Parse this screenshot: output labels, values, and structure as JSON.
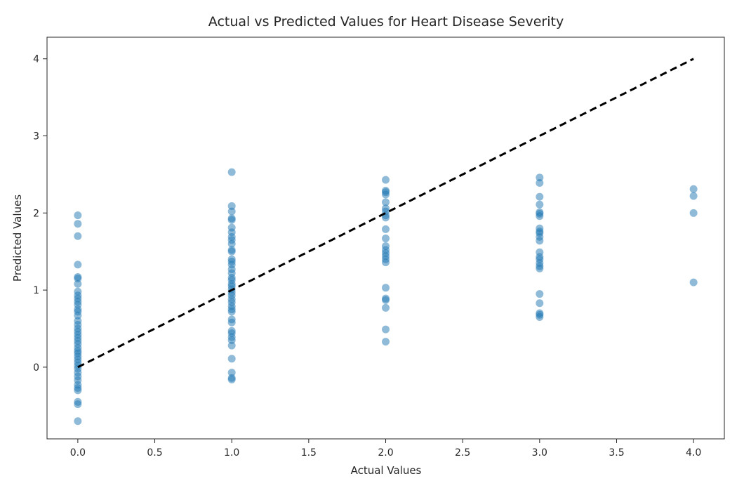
{
  "chart_data": {
    "type": "scatter",
    "title": "Actual vs Predicted Values for Heart Disease Severity",
    "xlabel": "Actual Values",
    "ylabel": "Predicted Values",
    "xlim": [
      -0.2,
      4.2
    ],
    "ylim": [
      -0.93,
      4.28
    ],
    "xticks": [
      "0.0",
      "0.5",
      "1.0",
      "1.5",
      "2.0",
      "2.5",
      "3.0",
      "3.5",
      "4.0"
    ],
    "xtick_values": [
      0,
      0.5,
      1,
      1.5,
      2,
      2.5,
      3,
      3.5,
      4
    ],
    "yticks": [
      "0",
      "1",
      "2",
      "3",
      "4"
    ],
    "ytick_values": [
      0,
      1,
      2,
      3,
      4
    ],
    "grid": false,
    "legend": "none",
    "point_color": "#1f77b4",
    "point_alpha": 0.5,
    "reference_line": {
      "style": "dashed",
      "color": "#000000",
      "from": [
        0,
        0
      ],
      "to": [
        4,
        4
      ]
    },
    "points": [
      {
        "x": 0,
        "y": 1.97
      },
      {
        "x": 0,
        "y": 1.86
      },
      {
        "x": 0,
        "y": 1.7
      },
      {
        "x": 0,
        "y": 1.33
      },
      {
        "x": 0,
        "y": 1.17
      },
      {
        "x": 0,
        "y": 1.15
      },
      {
        "x": 0,
        "y": 1.08
      },
      {
        "x": 0,
        "y": 0.98
      },
      {
        "x": 0,
        "y": 0.93
      },
      {
        "x": 0,
        "y": 0.89
      },
      {
        "x": 0,
        "y": 0.85
      },
      {
        "x": 0,
        "y": 0.81
      },
      {
        "x": 0,
        "y": 0.75
      },
      {
        "x": 0,
        "y": 0.72
      },
      {
        "x": 0,
        "y": 0.67
      },
      {
        "x": 0,
        "y": 0.6
      },
      {
        "x": 0,
        "y": 0.55
      },
      {
        "x": 0,
        "y": 0.5
      },
      {
        "x": 0,
        "y": 0.46
      },
      {
        "x": 0,
        "y": 0.42
      },
      {
        "x": 0,
        "y": 0.38
      },
      {
        "x": 0,
        "y": 0.34
      },
      {
        "x": 0,
        "y": 0.3
      },
      {
        "x": 0,
        "y": 0.25
      },
      {
        "x": 0,
        "y": 0.21
      },
      {
        "x": 0,
        "y": 0.18
      },
      {
        "x": 0,
        "y": 0.14
      },
      {
        "x": 0,
        "y": 0.1
      },
      {
        "x": 0,
        "y": 0.06
      },
      {
        "x": 0,
        "y": 0.02
      },
      {
        "x": 0,
        "y": -0.02
      },
      {
        "x": 0,
        "y": -0.07
      },
      {
        "x": 0,
        "y": -0.12
      },
      {
        "x": 0,
        "y": -0.17
      },
      {
        "x": 0,
        "y": -0.23
      },
      {
        "x": 0,
        "y": -0.27
      },
      {
        "x": 0,
        "y": -0.3
      },
      {
        "x": 0,
        "y": -0.45
      },
      {
        "x": 0,
        "y": -0.48
      },
      {
        "x": 0,
        "y": -0.7
      },
      {
        "x": 1,
        "y": 2.53
      },
      {
        "x": 1,
        "y": 2.09
      },
      {
        "x": 1,
        "y": 2.02
      },
      {
        "x": 1,
        "y": 1.93
      },
      {
        "x": 1,
        "y": 1.91
      },
      {
        "x": 1,
        "y": 1.81
      },
      {
        "x": 1,
        "y": 1.75
      },
      {
        "x": 1,
        "y": 1.69
      },
      {
        "x": 1,
        "y": 1.65
      },
      {
        "x": 1,
        "y": 1.6
      },
      {
        "x": 1,
        "y": 1.52
      },
      {
        "x": 1,
        "y": 1.5
      },
      {
        "x": 1,
        "y": 1.4
      },
      {
        "x": 1,
        "y": 1.37
      },
      {
        "x": 1,
        "y": 1.33
      },
      {
        "x": 1,
        "y": 1.27
      },
      {
        "x": 1,
        "y": 1.22
      },
      {
        "x": 1,
        "y": 1.16
      },
      {
        "x": 1,
        "y": 1.13
      },
      {
        "x": 1,
        "y": 1.08
      },
      {
        "x": 1,
        "y": 1.05
      },
      {
        "x": 1,
        "y": 1.01
      },
      {
        "x": 1,
        "y": 0.97
      },
      {
        "x": 1,
        "y": 0.93
      },
      {
        "x": 1,
        "y": 0.88
      },
      {
        "x": 1,
        "y": 0.84
      },
      {
        "x": 1,
        "y": 0.79
      },
      {
        "x": 1,
        "y": 0.75
      },
      {
        "x": 1,
        "y": 0.72
      },
      {
        "x": 1,
        "y": 0.62
      },
      {
        "x": 1,
        "y": 0.58
      },
      {
        "x": 1,
        "y": 0.47
      },
      {
        "x": 1,
        "y": 0.44
      },
      {
        "x": 1,
        "y": 0.39
      },
      {
        "x": 1,
        "y": 0.35
      },
      {
        "x": 1,
        "y": 0.28
      },
      {
        "x": 1,
        "y": 0.11
      },
      {
        "x": 1,
        "y": -0.07
      },
      {
        "x": 1,
        "y": -0.14
      },
      {
        "x": 1,
        "y": -0.16
      },
      {
        "x": 2,
        "y": 2.43
      },
      {
        "x": 2,
        "y": 2.29
      },
      {
        "x": 2,
        "y": 2.27
      },
      {
        "x": 2,
        "y": 2.24
      },
      {
        "x": 2,
        "y": 2.14
      },
      {
        "x": 2,
        "y": 2.06
      },
      {
        "x": 2,
        "y": 2.02
      },
      {
        "x": 2,
        "y": 1.97
      },
      {
        "x": 2,
        "y": 1.94
      },
      {
        "x": 2,
        "y": 1.79
      },
      {
        "x": 2,
        "y": 1.67
      },
      {
        "x": 2,
        "y": 1.57
      },
      {
        "x": 2,
        "y": 1.52
      },
      {
        "x": 2,
        "y": 1.48
      },
      {
        "x": 2,
        "y": 1.44
      },
      {
        "x": 2,
        "y": 1.4
      },
      {
        "x": 2,
        "y": 1.36
      },
      {
        "x": 2,
        "y": 1.03
      },
      {
        "x": 2,
        "y": 0.89
      },
      {
        "x": 2,
        "y": 0.87
      },
      {
        "x": 2,
        "y": 0.77
      },
      {
        "x": 2,
        "y": 0.49
      },
      {
        "x": 2,
        "y": 0.33
      },
      {
        "x": 3,
        "y": 2.46
      },
      {
        "x": 3,
        "y": 2.39
      },
      {
        "x": 3,
        "y": 2.21
      },
      {
        "x": 3,
        "y": 2.11
      },
      {
        "x": 3,
        "y": 2.01
      },
      {
        "x": 3,
        "y": 1.99
      },
      {
        "x": 3,
        "y": 1.96
      },
      {
        "x": 3,
        "y": 1.8
      },
      {
        "x": 3,
        "y": 1.76
      },
      {
        "x": 3,
        "y": 1.74
      },
      {
        "x": 3,
        "y": 1.69
      },
      {
        "x": 3,
        "y": 1.64
      },
      {
        "x": 3,
        "y": 1.49
      },
      {
        "x": 3,
        "y": 1.43
      },
      {
        "x": 3,
        "y": 1.4
      },
      {
        "x": 3,
        "y": 1.35
      },
      {
        "x": 3,
        "y": 1.31
      },
      {
        "x": 3,
        "y": 1.28
      },
      {
        "x": 3,
        "y": 0.95
      },
      {
        "x": 3,
        "y": 0.83
      },
      {
        "x": 3,
        "y": 0.7
      },
      {
        "x": 3,
        "y": 0.68
      },
      {
        "x": 3,
        "y": 0.65
      },
      {
        "x": 4,
        "y": 2.31
      },
      {
        "x": 4,
        "y": 2.22
      },
      {
        "x": 4,
        "y": 2.0
      },
      {
        "x": 4,
        "y": 1.1
      }
    ]
  }
}
